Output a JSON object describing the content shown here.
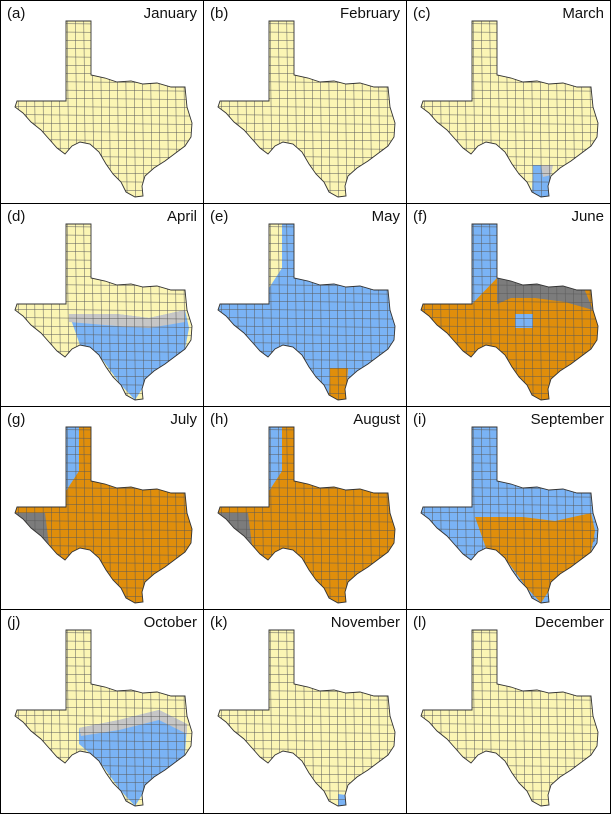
{
  "colors": {
    "yellow": "#FBF5B4",
    "blue": "#7AB3F5",
    "orange": "#E08E0B",
    "dark_gray": "#7C7C7C",
    "light_gray": "#C6C6C6",
    "county_lines": "#5A5A5A"
  },
  "panels": [
    {
      "label": "(a)",
      "month": "January",
      "fill": [
        [
          "yellow"
        ]
      ]
    },
    {
      "label": "(b)",
      "month": "February",
      "fill": [
        [
          "yellow"
        ]
      ]
    },
    {
      "label": "(c)",
      "month": "March",
      "fill": [
        [
          "yellow"
        ],
        [
          "blue",
          "south-tip"
        ],
        [
          "light_gray",
          "south-tip-edge"
        ]
      ]
    },
    {
      "label": "(d)",
      "month": "April",
      "fill": [
        [
          "yellow"
        ],
        [
          "blue",
          "south"
        ],
        [
          "light_gray",
          "south-edge"
        ]
      ]
    },
    {
      "label": "(e)",
      "month": "May",
      "fill": [
        [
          "blue"
        ],
        [
          "yellow",
          "panhandle-west"
        ],
        [
          "orange",
          "south-tip"
        ]
      ]
    },
    {
      "label": "(f)",
      "month": "June",
      "fill": [
        [
          "orange"
        ],
        [
          "blue",
          "panhandle"
        ],
        [
          "dark_gray",
          "north-band"
        ],
        [
          "blue",
          "east-spots"
        ]
      ]
    },
    {
      "label": "(g)",
      "month": "July",
      "fill": [
        [
          "orange"
        ],
        [
          "blue",
          "panhandle-west"
        ],
        [
          "dark_gray",
          "far-west"
        ]
      ]
    },
    {
      "label": "(h)",
      "month": "August",
      "fill": [
        [
          "orange"
        ],
        [
          "blue",
          "panhandle-west"
        ],
        [
          "dark_gray",
          "far-west"
        ]
      ]
    },
    {
      "label": "(i)",
      "month": "September",
      "fill": [
        [
          "blue"
        ],
        [
          "dark_gray",
          "east-mid"
        ],
        [
          "orange",
          "south"
        ]
      ]
    },
    {
      "label": "(j)",
      "month": "October",
      "fill": [
        [
          "yellow"
        ],
        [
          "blue",
          "south-east"
        ],
        [
          "light_gray",
          "south-east-edge"
        ]
      ]
    },
    {
      "label": "(k)",
      "month": "November",
      "fill": [
        [
          "yellow"
        ],
        [
          "blue",
          "south-tip-small"
        ]
      ]
    },
    {
      "label": "(l)",
      "month": "December",
      "fill": [
        [
          "yellow"
        ]
      ]
    }
  ]
}
